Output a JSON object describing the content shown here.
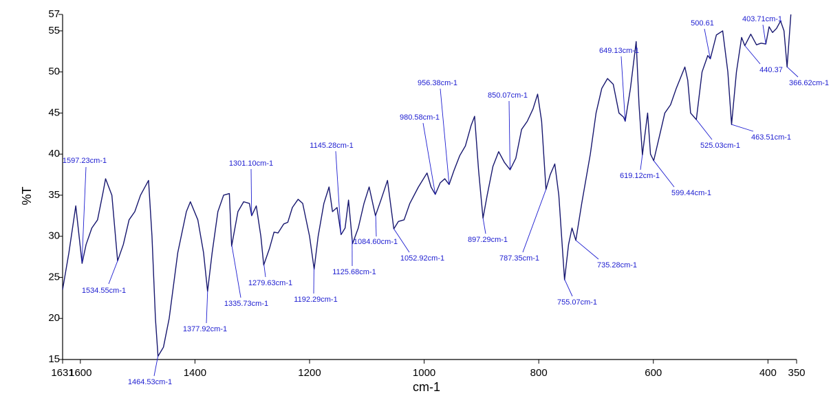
{
  "chart_data": {
    "type": "line",
    "x_label": "cm-1",
    "y_label": "%T",
    "color": "#16166e",
    "annotation_color": "#1c1cd0",
    "xlim": [
      1631,
      350
    ],
    "ylim": [
      15,
      57
    ],
    "xticks": [
      1631,
      1600,
      1400,
      1200,
      1000,
      800,
      600,
      400,
      350
    ],
    "yticks": [
      15,
      20,
      25,
      30,
      35,
      40,
      45,
      50,
      55,
      57
    ],
    "grid": false,
    "x": [
      1631,
      1620,
      1608,
      1597,
      1590,
      1580,
      1570,
      1560,
      1556,
      1545,
      1535,
      1525,
      1515,
      1505,
      1495,
      1481,
      1475,
      1469,
      1464.5,
      1455,
      1445,
      1430,
      1415,
      1408,
      1395,
      1385,
      1378,
      1370,
      1360,
      1350,
      1340,
      1336,
      1325,
      1315,
      1305,
      1301,
      1293,
      1285,
      1280,
      1270,
      1262,
      1255,
      1245,
      1238,
      1230,
      1220,
      1212,
      1200,
      1192,
      1185,
      1175,
      1166,
      1160,
      1152,
      1145,
      1138,
      1132,
      1125,
      1115,
      1105,
      1096,
      1085,
      1075,
      1064,
      1055,
      1053,
      1045,
      1035,
      1025,
      1010,
      995,
      988,
      980.6,
      972,
      964,
      956.4,
      948,
      938,
      928,
      918,
      912,
      905,
      897.3,
      890,
      880,
      870,
      860,
      850,
      840,
      830,
      820,
      810,
      802,
      795,
      787.4,
      780,
      772,
      765,
      755,
      748,
      742,
      735.3,
      725,
      710,
      700,
      690,
      680,
      670,
      660,
      652,
      649.1,
      640,
      630,
      625,
      619.1,
      610,
      605,
      599.4,
      590,
      580,
      570,
      560,
      545,
      540,
      535,
      525,
      515,
      505,
      500.6,
      490,
      479,
      470,
      463.5,
      455,
      446,
      440.4,
      430,
      420,
      412,
      403.7,
      398,
      392,
      385,
      378,
      372,
      366.6,
      360
    ],
    "values": [
      23.5,
      28,
      33.7,
      26.7,
      29,
      31,
      32,
      35.5,
      37,
      35,
      27,
      29,
      32,
      33,
      35,
      36.8,
      30,
      20,
      15.4,
      16.5,
      20,
      28,
      33,
      34.2,
      32,
      28,
      23.3,
      28,
      33,
      35,
      35.2,
      28.8,
      33,
      34.2,
      34,
      32.5,
      33.7,
      30,
      26.5,
      28.5,
      30.5,
      30.4,
      31.5,
      31.7,
      33.5,
      34.5,
      34,
      30,
      26,
      30,
      34,
      36,
      33,
      33.5,
      30.2,
      31,
      34.4,
      29.1,
      31,
      34,
      36,
      32.5,
      34.5,
      36.8,
      32,
      30.9,
      31.8,
      32,
      34,
      36,
      37.7,
      36,
      35.1,
      36.5,
      37,
      36.3,
      38,
      39.8,
      41,
      43.5,
      44.6,
      38,
      32.2,
      35,
      38.5,
      40.3,
      39,
      38.1,
      39.5,
      43,
      44,
      45.5,
      47.3,
      44,
      35.7,
      37.5,
      38.8,
      35,
      24.7,
      29,
      31,
      29.5,
      34,
      40,
      45,
      48,
      49.2,
      48.5,
      45,
      44.5,
      44,
      48,
      53.7,
      46,
      39.9,
      45,
      40,
      39.2,
      42,
      45,
      46,
      48,
      50.6,
      49,
      45,
      44.2,
      50,
      52,
      51.6,
      54.5,
      55,
      50,
      43.6,
      50,
      54.2,
      53.2,
      54.6,
      53.3,
      53.5,
      53.4,
      55.5,
      54.8,
      55.3,
      56.2,
      55,
      50.6,
      57
    ],
    "annotations": [
      {
        "text": "1597.23cm-1",
        "x": 1597.23
      },
      {
        "text": "1534.55cm-1",
        "x": 1534.55
      },
      {
        "text": "1464.53cm-1",
        "x": 1464.53
      },
      {
        "text": "1377.92cm-1",
        "x": 1377.92
      },
      {
        "text": "1335.73cm-1",
        "x": 1335.73
      },
      {
        "text": "1301.10cm-1",
        "x": 1301.1
      },
      {
        "text": "1279.63cm-1",
        "x": 1279.63
      },
      {
        "text": "1192.29cm-1",
        "x": 1192.29
      },
      {
        "text": "1145.28cm-1",
        "x": 1145.28
      },
      {
        "text": "1125.68cm-1",
        "x": 1125.68
      },
      {
        "text": "1084.60cm-1",
        "x": 1084.6
      },
      {
        "text": "1052.92cm-1",
        "x": 1052.92
      },
      {
        "text": "980.58cm-1",
        "x": 980.58
      },
      {
        "text": "956.38cm-1",
        "x": 956.38
      },
      {
        "text": "897.29cm-1",
        "x": 897.29
      },
      {
        "text": "850.07cm-1",
        "x": 850.07
      },
      {
        "text": "787.35cm-1",
        "x": 787.35
      },
      {
        "text": "755.07cm-1",
        "x": 755.07
      },
      {
        "text": "735.28cm-1",
        "x": 735.28
      },
      {
        "text": "649.13cm-1",
        "x": 649.13
      },
      {
        "text": "619.12cm-1",
        "x": 619.12
      },
      {
        "text": "599.44cm-1",
        "x": 599.44
      },
      {
        "text": "525.03cm-1",
        "x": 525.03
      },
      {
        "text": "500.61",
        "x": 500.61
      },
      {
        "text": "463.51cm-1",
        "x": 463.51
      },
      {
        "text": "440.37",
        "x": 440.37
      },
      {
        "text": "403.71cm-1",
        "x": 403.71
      },
      {
        "text": "366.62cm-1",
        "x": 366.62
      }
    ]
  }
}
